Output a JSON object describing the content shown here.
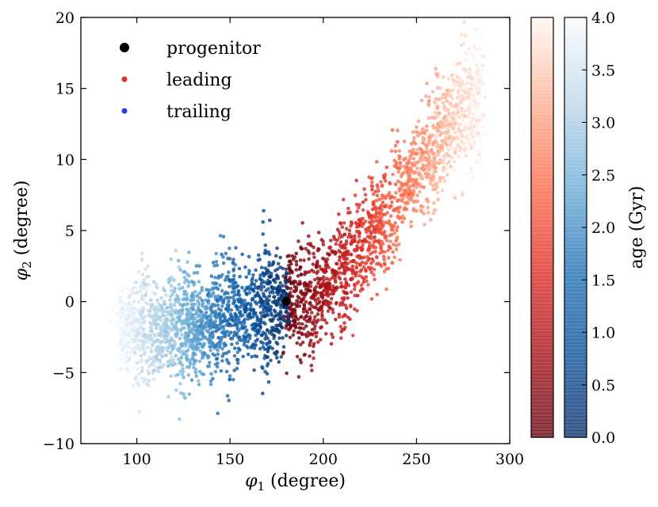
{
  "chart_data": {
    "type": "scatter",
    "title": "",
    "xlabel": "φ1 (degree)",
    "ylabel": "φ2 (degree)",
    "xlabel_main": "φ",
    "xlabel_sub": "1",
    "xlabel_unit": " (degree)",
    "ylabel_main": "φ",
    "ylabel_sub": "2",
    "ylabel_unit": " (degree)",
    "xlim": [
      70,
      300
    ],
    "ylim": [
      -10,
      20
    ],
    "xticks": [
      100,
      150,
      200,
      250,
      300
    ],
    "yticks": [
      -10,
      -5,
      0,
      5,
      10,
      15,
      20
    ],
    "xtick_labels": [
      "100",
      "150",
      "200",
      "250",
      "300"
    ],
    "ytick_labels": [
      "−10",
      "−5",
      "0",
      "5",
      "10",
      "15",
      "20"
    ],
    "legend": {
      "position": "top-left",
      "entries": [
        {
          "label": "progenitor",
          "color": "#000000",
          "marker": "large-dot"
        },
        {
          "label": "leading",
          "color": "#ee2b2b",
          "marker": "dot"
        },
        {
          "label": "trailing",
          "color": "#2b3bee",
          "marker": "dot"
        }
      ]
    },
    "progenitor": {
      "x": 180,
      "y": 0
    },
    "series": [
      {
        "name": "leading",
        "colormap": "Reds",
        "note": "stream points from phi1≈180 to ≈292; color encodes age (young = dark red at phi1≈180, old = pale at phi1≈280)",
        "path": [
          {
            "x": 180,
            "y": 0,
            "age": 0.0
          },
          {
            "x": 195,
            "y": 0.3,
            "age": 0.6
          },
          {
            "x": 210,
            "y": 2.2,
            "age": 1.2
          },
          {
            "x": 225,
            "y": 4.5,
            "age": 1.8
          },
          {
            "x": 240,
            "y": 7.2,
            "age": 2.4
          },
          {
            "x": 255,
            "y": 10.0,
            "age": 3.0
          },
          {
            "x": 270,
            "y": 12.8,
            "age": 3.6
          },
          {
            "x": 285,
            "y": 14.5,
            "age": 4.0
          }
        ]
      },
      {
        "name": "trailing",
        "colormap": "Blues",
        "note": "stream points from phi1≈88 to ≈180; color encodes age (young = dark blue near 180, old = pale near 90)",
        "path": [
          {
            "x": 180,
            "y": 0,
            "age": 0.0
          },
          {
            "x": 165,
            "y": -0.6,
            "age": 0.7
          },
          {
            "x": 150,
            "y": -1.2,
            "age": 1.4
          },
          {
            "x": 135,
            "y": -1.6,
            "age": 2.1
          },
          {
            "x": 120,
            "y": -1.8,
            "age": 2.8
          },
          {
            "x": 105,
            "y": -2.0,
            "age": 3.4
          },
          {
            "x": 90,
            "y": -1.9,
            "age": 4.0
          }
        ]
      }
    ],
    "colorbars": [
      {
        "name": "leading",
        "colormap": "Reds",
        "range": [
          0.0,
          4.0
        ]
      },
      {
        "name": "trailing",
        "colormap": "Blues",
        "range": [
          0.0,
          4.0
        ],
        "ticks": [
          0.0,
          0.5,
          1.0,
          1.5,
          2.0,
          2.5,
          3.0,
          3.5,
          4.0
        ],
        "tick_labels": [
          "0.0",
          "0.5",
          "1.0",
          "1.5",
          "2.0",
          "2.5",
          "3.0",
          "3.5",
          "4.0"
        ],
        "label": "age (Gyr)"
      }
    ]
  }
}
